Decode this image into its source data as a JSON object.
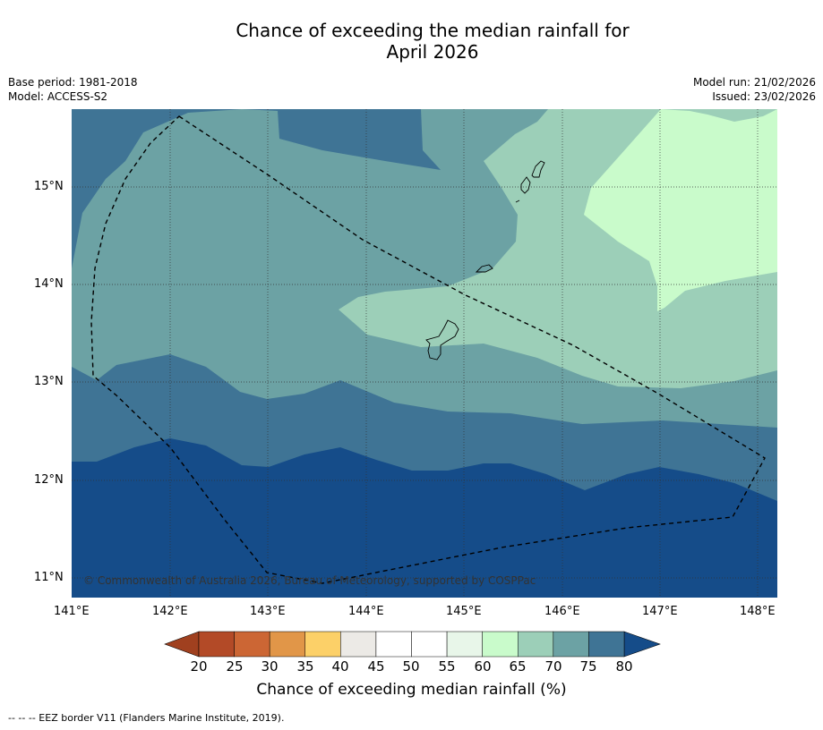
{
  "header": {
    "title_line1": "Chance of exceeding the median rainfall for",
    "title_line2": "April 2026",
    "base_period": "Base period: 1981-2018",
    "model": "Model: ACCESS-S2",
    "model_run": "Model run: 21/02/2026",
    "issued": "Issued: 23/02/2026"
  },
  "map": {
    "lat_ticks": [
      "15°N",
      "14°N",
      "13°N",
      "12°N",
      "11°N"
    ],
    "lon_ticks": [
      "141°E",
      "142°E",
      "143°E",
      "144°E",
      "145°E",
      "146°E",
      "147°E",
      "148°E"
    ],
    "copyright": "© Commonwealth of Australia 2026, Bureau of Meteorology, supported by COSPPac"
  },
  "colorbar": {
    "label": "Chance of exceeding median rainfall (%)",
    "ticks": [
      "20",
      "25",
      "30",
      "35",
      "40",
      "45",
      "50",
      "55",
      "60",
      "65",
      "70",
      "75",
      "80"
    ],
    "under_color": "#a0401f",
    "over_color": "#154c89",
    "colors": [
      "#b34a27",
      "#cc6634",
      "#e19648",
      "#fcd068",
      "#eceae6",
      "#ffffff",
      "#ffffff",
      "#e8f6e9",
      "#c9fbcb",
      "#9ccfb8",
      "#6ca2a4",
      "#3f7495"
    ]
  },
  "footnote": "--  --  -- EEZ border V11 (Flanders Marine Institute, 2019)."
}
